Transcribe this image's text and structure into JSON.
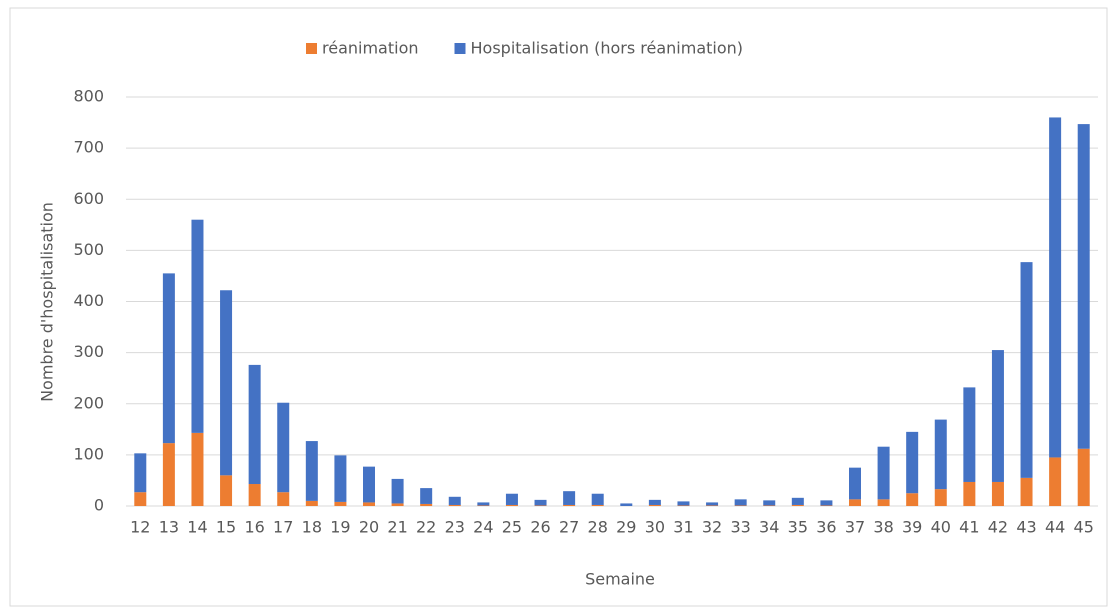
{
  "chart_data": {
    "type": "stacked_bar",
    "categories": [
      "12",
      "13",
      "14",
      "15",
      "16",
      "17",
      "18",
      "19",
      "20",
      "21",
      "22",
      "23",
      "24",
      "25",
      "26",
      "27",
      "28",
      "29",
      "30",
      "31",
      "32",
      "33",
      "34",
      "35",
      "36",
      "37",
      "38",
      "39",
      "40",
      "41",
      "42",
      "43",
      "44",
      "45"
    ],
    "series": [
      {
        "name": "réanimation",
        "color": "#ed7d31",
        "values": [
          27,
          123,
          143,
          60,
          43,
          27,
          10,
          8,
          7,
          5,
          4,
          2,
          1,
          2,
          1,
          2,
          2,
          0,
          2,
          1,
          1,
          1,
          1,
          2,
          1,
          13,
          13,
          25,
          33,
          47,
          47,
          55,
          95,
          112
        ]
      },
      {
        "name": "Hospitalisation (hors réanimation)",
        "color": "#4472c4",
        "values": [
          76,
          332,
          417,
          362,
          233,
          175,
          117,
          91,
          70,
          48,
          31,
          16,
          6,
          22,
          11,
          27,
          22,
          5,
          10,
          8,
          6,
          12,
          10,
          14,
          10,
          62,
          103,
          120,
          136,
          185,
          258,
          422,
          665,
          635
        ]
      }
    ],
    "ylim": [
      0,
      800
    ],
    "yticks": [
      0,
      100,
      200,
      300,
      400,
      500,
      600,
      700,
      800
    ],
    "ylabel": "Nombre d'hospitalisation",
    "xlabel": "Semaine",
    "grid": true,
    "legend": "top"
  }
}
